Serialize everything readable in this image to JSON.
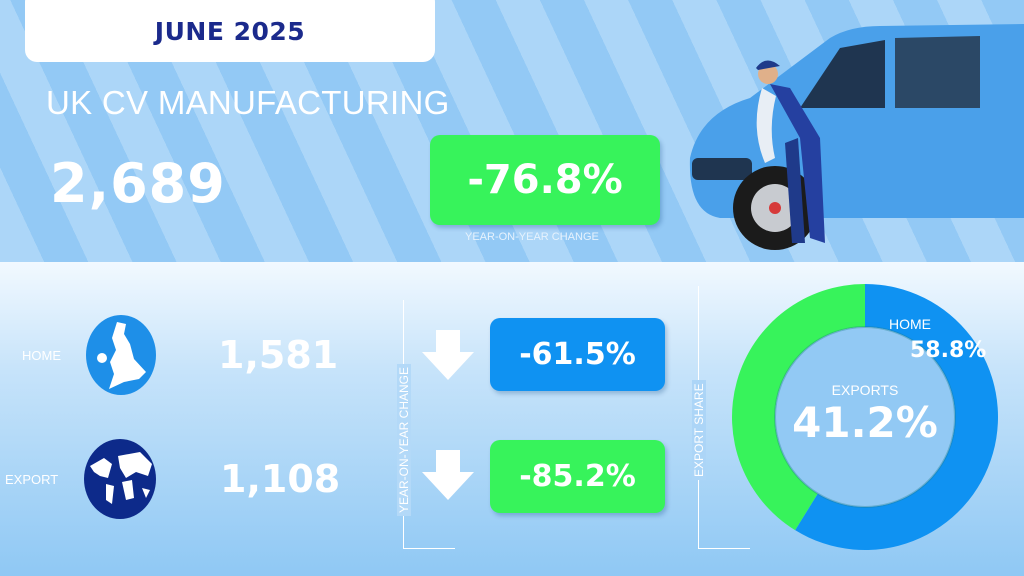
{
  "header": {
    "date": "JUNE 2025",
    "title": "UK CV MANUFACTURING",
    "total": "2,689",
    "total_yoy_change": "-76.8%",
    "yoy_caption": "YEAR-ON-YEAR CHANGE"
  },
  "breakdown": {
    "yoy_axis_label": "YEAR-ON-YEAR CHANGE",
    "rows": [
      {
        "label": "HOME",
        "icon": "uk-map-icon",
        "value": "1,581",
        "change": "-61.5%",
        "direction": "down",
        "color": "#0f92f2"
      },
      {
        "label": "EXPORT",
        "icon": "globe-icon",
        "value": "1,108",
        "change": "-85.2%",
        "direction": "down",
        "color": "#37f35b"
      }
    ]
  },
  "share": {
    "axis_label": "EXPORT SHARE",
    "home_label": "HOME",
    "home_value": "58.8%",
    "exports_label": "EXPORTS",
    "exports_value": "41.2%"
  },
  "colors": {
    "home": "#0f92f2",
    "export": "#37f35b",
    "navy": "#1b2a8c",
    "background": "#a9d4f7"
  },
  "chart_data": {
    "type": "pie",
    "variant": "donut",
    "categories": [
      "HOME",
      "EXPORTS"
    ],
    "values": [
      58.8,
      41.2
    ],
    "colors": [
      "#0f92f2",
      "#37f35b"
    ],
    "title": ""
  }
}
